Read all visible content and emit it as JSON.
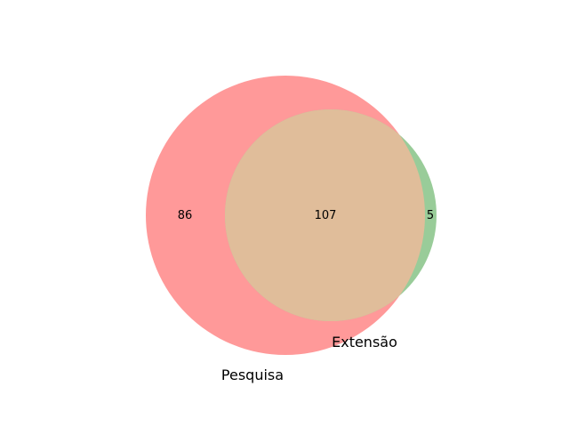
{
  "chart_data": {
    "type": "venn",
    "sets": [
      {
        "label": "Pesquisa",
        "color": "#ff9999"
      },
      {
        "label": "Extensão",
        "color": "#99cc99"
      }
    ],
    "regions": {
      "only_a": "86",
      "intersection": "107",
      "only_b": "5"
    },
    "intersection_color": "#e0bd9a"
  }
}
